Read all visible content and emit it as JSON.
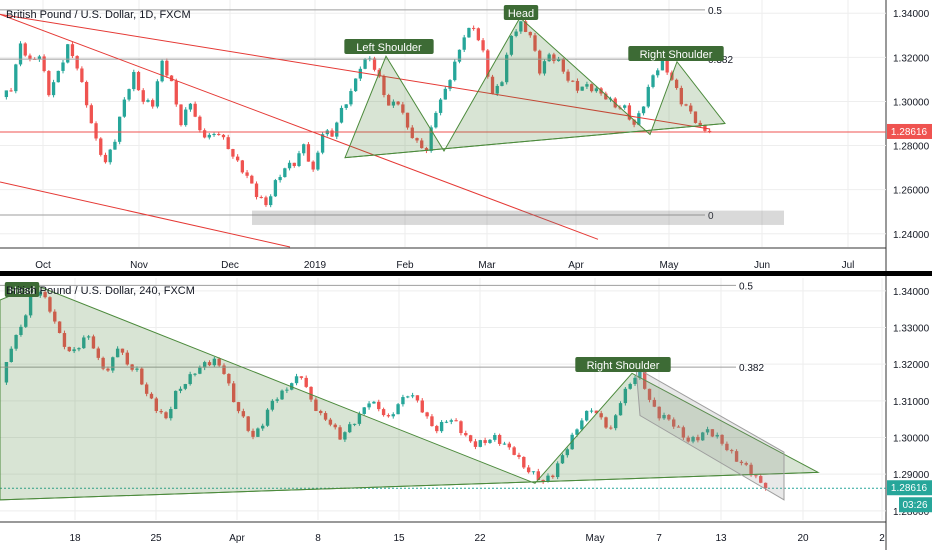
{
  "chart_data": [
    {
      "type": "candlestick",
      "title": "British Pound / U.S. Dollar, 1D, FXCM",
      "yticks": [
        "1.34000",
        "1.32000",
        "1.30000",
        "1.28000",
        "1.26000",
        "1.24000"
      ],
      "ylim": [
        1.234,
        1.346
      ],
      "xticks": [
        "Oct",
        "Nov",
        "Dec",
        "2019",
        "Feb",
        "Mar",
        "Apr",
        "May",
        "Jun",
        "Jul"
      ],
      "price_tag": "1.28616",
      "last_price": 1.28616,
      "fib_levels": [
        {
          "label": "0.5",
          "value": 1.3415
        },
        {
          "label": "0.382",
          "value": 1.3192
        },
        {
          "label": "0",
          "value": 1.2485
        }
      ],
      "annotations": [
        "Left Shoulder",
        "Head",
        "Right Shoulder"
      ],
      "path": [
        1.302,
        1.306,
        1.326,
        1.318,
        1.321,
        1.304,
        1.313,
        1.325,
        1.316,
        1.299,
        1.282,
        1.272,
        1.283,
        1.301,
        1.312,
        1.3,
        1.299,
        1.318,
        1.308,
        1.29,
        1.3,
        1.286,
        1.284,
        1.286,
        1.279,
        1.272,
        1.266,
        1.258,
        1.253,
        1.263,
        1.27,
        1.272,
        1.28,
        1.268,
        1.286,
        1.285,
        1.296,
        1.304,
        1.316,
        1.32,
        1.31,
        1.298,
        1.3,
        1.288,
        1.281,
        1.278,
        1.296,
        1.305,
        1.317,
        1.33,
        1.334,
        1.322,
        1.303,
        1.31,
        1.33,
        1.335,
        1.33,
        1.314,
        1.321,
        1.318,
        1.31,
        1.306,
        1.307,
        1.305,
        1.302,
        1.298,
        1.297,
        1.289,
        1.299,
        1.312,
        1.318,
        1.31,
        1.3,
        1.295,
        1.288,
        1.286
      ]
    },
    {
      "type": "candlestick",
      "title": "British Pound / U.S. Dollar, 240, FXCM",
      "yticks": [
        "1.34000",
        "1.33000",
        "1.32000",
        "1.31000",
        "1.30000",
        "1.29000",
        "1.28000"
      ],
      "ylim": [
        1.2775,
        1.3435
      ],
      "xticks": [
        "18",
        "25",
        "Apr",
        "8",
        "15",
        "22",
        "May",
        "7",
        "13",
        "20",
        "2"
      ],
      "price_tag": "1.28616",
      "last_price": 1.28616,
      "countdown": "03:26",
      "fib_levels": [
        {
          "label": "0.5",
          "value": 1.3415
        },
        {
          "label": "0.382",
          "value": 1.3192
        }
      ],
      "annotations": [
        "Head",
        "Right Shoulder"
      ],
      "path": [
        1.315,
        1.325,
        1.33,
        1.338,
        1.34,
        1.335,
        1.328,
        1.323,
        1.325,
        1.328,
        1.321,
        1.318,
        1.325,
        1.32,
        1.318,
        1.312,
        1.308,
        1.305,
        1.312,
        1.315,
        1.318,
        1.32,
        1.321,
        1.318,
        1.31,
        1.305,
        1.3,
        1.304,
        1.31,
        1.312,
        1.315,
        1.317,
        1.31,
        1.306,
        1.304,
        1.3,
        1.303,
        1.306,
        1.31,
        1.308,
        1.305,
        1.309,
        1.312,
        1.31,
        1.305,
        1.302,
        1.305,
        1.304,
        1.3,
        1.298,
        1.299,
        1.3,
        1.298,
        1.296,
        1.292,
        1.29,
        1.288,
        1.29,
        1.295,
        1.3,
        1.305,
        1.308,
        1.305,
        1.302,
        1.31,
        1.315,
        1.318,
        1.31,
        1.306,
        1.305,
        1.302,
        1.299,
        1.3,
        1.302,
        1.3,
        1.297,
        1.294,
        1.292,
        1.289,
        1.286
      ]
    }
  ]
}
